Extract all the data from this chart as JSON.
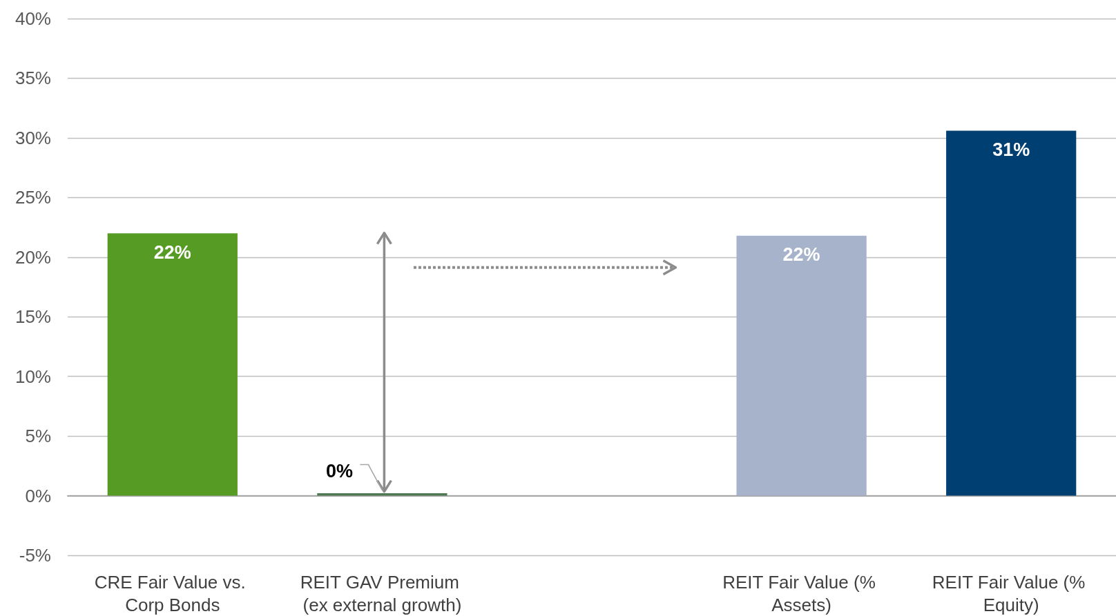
{
  "chart_data": {
    "type": "bar",
    "categories": [
      "CRE Fair Value vs. Corp Bonds",
      "REIT GAV Premium (ex external growth)",
      null,
      "REIT Fair Value (% Assets)",
      "REIT Fair Value (% Equity)"
    ],
    "values": [
      22.0,
      0.2,
      null,
      21.8,
      30.6
    ],
    "colors": [
      "#559b24",
      "#4e7a52",
      "#cccccc",
      "#a6b3ca",
      "#003f72"
    ],
    "value_labels": [
      "22%",
      "0%",
      null,
      "22%",
      "31%"
    ],
    "ylim": [
      -5,
      40
    ],
    "yticks": [
      {
        "value": -5,
        "label": "-5%"
      },
      {
        "value": 0,
        "label": "0%"
      },
      {
        "value": 5,
        "label": "5%"
      },
      {
        "value": 10,
        "label": "10%"
      },
      {
        "value": 15,
        "label": "15%"
      },
      {
        "value": 20,
        "label": "20%"
      },
      {
        "value": 25,
        "label": "25%"
      },
      {
        "value": 30,
        "label": "30%"
      },
      {
        "value": 35,
        "label": "35%"
      },
      {
        "value": 40,
        "label": "40%"
      }
    ],
    "grid": "y"
  }
}
